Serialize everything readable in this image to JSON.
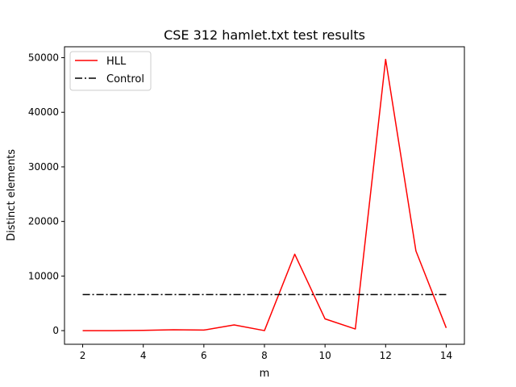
{
  "chart_data": {
    "type": "line",
    "title": "CSE 312 hamlet.txt test results",
    "xlabel": "m",
    "ylabel": "Distinct elements",
    "xlim": [
      1.4,
      14.6
    ],
    "ylim": [
      -2500,
      52000
    ],
    "xticks": [
      2,
      4,
      6,
      8,
      10,
      12,
      14
    ],
    "xtick_labels": [
      "2",
      "4",
      "6",
      "8",
      "10",
      "12",
      "14"
    ],
    "yticks": [
      0,
      10000,
      20000,
      30000,
      40000,
      50000
    ],
    "ytick_labels": [
      "0",
      "10000",
      "20000",
      "30000",
      "40000",
      "50000"
    ],
    "grid": false,
    "legend_position": "top-left",
    "series": [
      {
        "name": "HLL",
        "color": "#ff0000",
        "style": "solid",
        "x": [
          2,
          3,
          4,
          5,
          6,
          7,
          8,
          9,
          10,
          11,
          12,
          13,
          14
        ],
        "y": [
          0,
          0,
          50,
          150,
          100,
          1050,
          0,
          14000,
          2150,
          300,
          49700,
          14600,
          500
        ]
      },
      {
        "name": "Control",
        "color": "#000000",
        "style": "dashdot",
        "x": [
          2,
          14
        ],
        "y": [
          6600,
          6600
        ]
      }
    ]
  }
}
